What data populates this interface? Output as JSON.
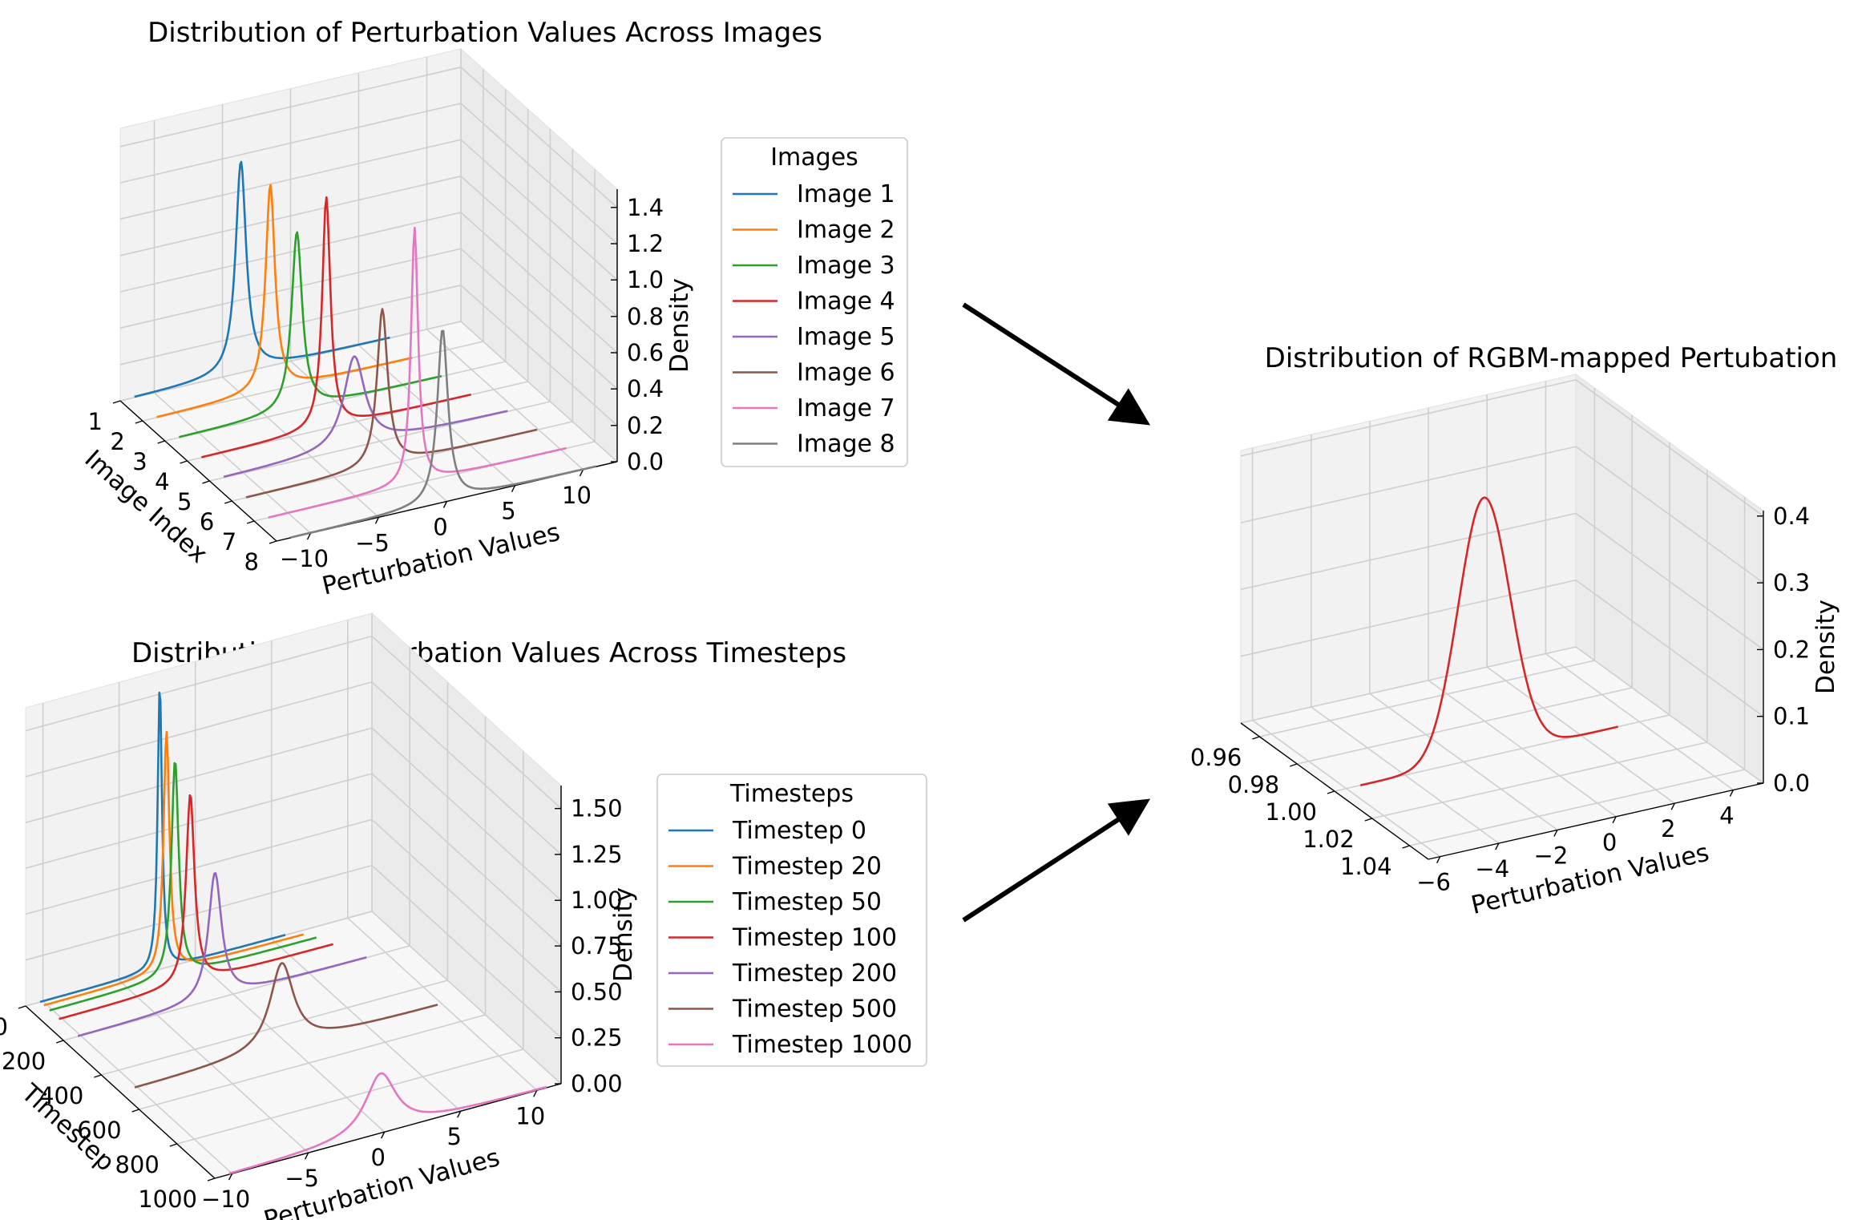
{
  "chart_data": [
    {
      "type": "line",
      "subtype": "3d-density",
      "title": "Distribution of Perturbation Values Across Images",
      "xlabel": "Perturbation Values",
      "ylabel": "Image Index",
      "zlabel": "Density",
      "xlim": [
        -12,
        12
      ],
      "ylim": [
        1,
        8
      ],
      "zlim": [
        0,
        1.5
      ],
      "x_ticks": [
        "−10",
        "−5",
        "0",
        "5",
        "10"
      ],
      "y_ticks": [
        "1",
        "2",
        "3",
        "4",
        "5",
        "6",
        "7",
        "8"
      ],
      "z_ticks": [
        "0.0",
        "0.2",
        "0.4",
        "0.6",
        "0.8",
        "1.0",
        "1.2",
        "1.4"
      ],
      "grid": true,
      "legend": {
        "title": "Images",
        "placement": "right"
      },
      "series": [
        {
          "name": "Image 1",
          "color": "#1f77b4",
          "index": 1,
          "x_range": [
            -11,
            7
          ],
          "peak_x": -3.5,
          "peak_density": 1.28,
          "width": 0.45
        },
        {
          "name": "Image 2",
          "color": "#ff7f0e",
          "index": 2,
          "x_range": [
            -11,
            7
          ],
          "peak_x": -3.0,
          "peak_density": 1.25,
          "width": 0.4
        },
        {
          "name": "Image 3",
          "color": "#2ca02c",
          "index": 3,
          "x_range": [
            -11,
            7.5
          ],
          "peak_x": -2.7,
          "peak_density": 1.08,
          "width": 0.45
        },
        {
          "name": "Image 4",
          "color": "#d62728",
          "index": 4,
          "x_range": [
            -11,
            8
          ],
          "peak_x": -2.2,
          "peak_density": 1.4,
          "width": 0.35
        },
        {
          "name": "Image 5",
          "color": "#9467bd",
          "index": 5,
          "x_range": [
            -11,
            9
          ],
          "peak_x": -1.8,
          "peak_density": 0.55,
          "width": 0.9
        },
        {
          "name": "Image 6",
          "color": "#8c564b",
          "index": 6,
          "x_range": [
            -11,
            9.5
          ],
          "peak_x": -1.4,
          "peak_density": 0.95,
          "width": 0.45
        },
        {
          "name": "Image 7",
          "color": "#e377c2",
          "index": 7,
          "x_range": [
            -11,
            10
          ],
          "peak_x": -0.7,
          "peak_density": 1.55,
          "width": 0.3
        },
        {
          "name": "Image 8",
          "color": "#7f7f7f",
          "index": 8,
          "x_range": [
            -11,
            10.5
          ],
          "peak_x": -0.3,
          "peak_density": 1.05,
          "width": 0.45
        }
      ]
    },
    {
      "type": "line",
      "subtype": "3d-density",
      "title": "Distribution of Perturbation Values Across Timesteps",
      "xlabel": "Perturbation Values",
      "ylabel": "Timestep",
      "zlabel": "Density",
      "xlim": [
        -12,
        12
      ],
      "ylim": [
        0,
        1000
      ],
      "zlim": [
        0,
        1.5
      ],
      "x_ticks": [
        "−10",
        "−5",
        "0",
        "5",
        "10"
      ],
      "y_ticks": [
        "0",
        "200",
        "400",
        "600",
        "800",
        "1000"
      ],
      "z_ticks": [
        "0.00",
        "0.25",
        "0.50",
        "0.75",
        "1.00",
        "1.25",
        "1.50"
      ],
      "grid": true,
      "legend": {
        "title": "Timesteps",
        "placement": "right"
      },
      "series": [
        {
          "name": "Timestep 0",
          "color": "#1f77b4",
          "timestep": 0,
          "x_range": [
            -11,
            6
          ],
          "peak_x": -2.7,
          "peak_density": 1.58,
          "width": 0.18
        },
        {
          "name": "Timestep 20",
          "color": "#ff7f0e",
          "timestep": 20,
          "x_range": [
            -11,
            7
          ],
          "peak_x": -2.5,
          "peak_density": 1.33,
          "width": 0.25
        },
        {
          "name": "Timestep 50",
          "color": "#2ca02c",
          "timestep": 50,
          "x_range": [
            -11,
            7.5
          ],
          "peak_x": -2.3,
          "peak_density": 1.2,
          "width": 0.3
        },
        {
          "name": "Timestep 100",
          "color": "#d62728",
          "timestep": 100,
          "x_range": [
            -11,
            8
          ],
          "peak_x": -1.9,
          "peak_density": 1.05,
          "width": 0.35
        },
        {
          "name": "Timestep 200",
          "color": "#9467bd",
          "timestep": 200,
          "x_range": [
            -11,
            9
          ],
          "peak_x": -1.5,
          "peak_density": 0.7,
          "width": 0.55
        },
        {
          "name": "Timestep 500",
          "color": "#8c564b",
          "timestep": 500,
          "x_range": [
            -11,
            10
          ],
          "peak_x": -0.8,
          "peak_density": 0.47,
          "width": 1.0
        },
        {
          "name": "Timestep 1000",
          "color": "#e377c2",
          "timestep": 1000,
          "x_range": [
            -11,
            11
          ],
          "peak_x": -0.5,
          "peak_density": 0.33,
          "width": 1.3
        }
      ]
    },
    {
      "type": "line",
      "subtype": "3d-density",
      "title": "Distribution of RGBM-mapped Pertubation",
      "xlabel": "Perturbation Values",
      "ylabel": "",
      "zlabel": "Density",
      "xlim": [
        -7,
        6
      ],
      "ylim": [
        0.95,
        1.05
      ],
      "zlim": [
        0,
        0.42
      ],
      "x_ticks": [
        "−6",
        "−4",
        "−2",
        "0",
        "2",
        "4"
      ],
      "y_ticks": [
        "0.96",
        "0.98",
        "1.00",
        "1.02",
        "1.04"
      ],
      "z_ticks": [
        "0.0",
        "0.1",
        "0.2",
        "0.3",
        "0.4"
      ],
      "grid": true,
      "series": [
        {
          "color": "#d62728",
          "y": 1.0,
          "x_range": [
            -6,
            4
          ],
          "peak_x": -1.2,
          "peak_density": 0.4,
          "width": 1.0
        }
      ]
    }
  ]
}
